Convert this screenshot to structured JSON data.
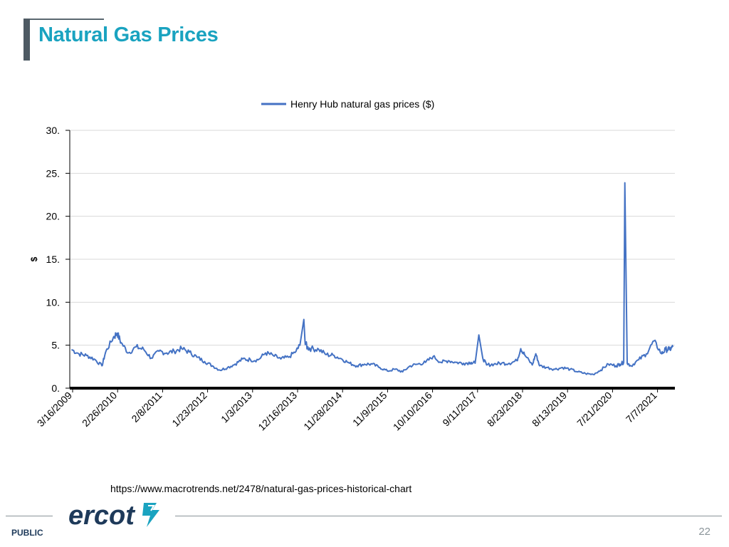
{
  "slide": {
    "title": "Natural Gas Prices",
    "source_url": "https://www.macrotrends.net/2478/natural-gas-prices-historical-chart",
    "classification": "PUBLIC",
    "page_number": "22",
    "logo_text": "ercot",
    "colors": {
      "title": "#1aa3c0",
      "logo": "#1e3a5a",
      "logo_accent": "#1aa3c0"
    }
  },
  "chart_data": {
    "type": "line",
    "title": "",
    "xlabel": "",
    "ylabel": "$",
    "ylim": [
      0,
      30
    ],
    "yticks": [
      "30.",
      "25.",
      "20.",
      "15.",
      "10.",
      "5.",
      "0."
    ],
    "ytick_values": [
      30,
      25,
      20,
      15,
      10,
      5,
      0
    ],
    "xtick_labels": [
      "3/16/2009",
      "2/26/2010",
      "2/8/2011",
      "1/23/2012",
      "1/3/2013",
      "12/16/2013",
      "11/28/2014",
      "11/9/2015",
      "10/10/2016",
      "9/11/2017",
      "8/23/2018",
      "8/13/2019",
      "7/21/2020",
      "7/7/2021"
    ],
    "grid": true,
    "legend": "top-center",
    "series": [
      {
        "name": "Henry Hub natural gas prices ($)",
        "color": "#4472c4",
        "x": [
          "2009-01",
          "2009-03",
          "2009-05",
          "2009-07",
          "2009-09",
          "2009-10",
          "2009-12",
          "2010-01",
          "2010-02",
          "2010-04",
          "2010-06",
          "2010-08",
          "2010-10",
          "2010-12",
          "2011-02",
          "2011-04",
          "2011-06",
          "2011-08",
          "2011-10",
          "2011-12",
          "2012-02",
          "2012-04",
          "2012-06",
          "2012-08",
          "2012-10",
          "2012-12",
          "2013-02",
          "2013-04",
          "2013-06",
          "2013-08",
          "2013-10",
          "2013-12",
          "2014-01",
          "2014-02",
          "2014-02",
          "2014-03",
          "2014-04",
          "2014-06",
          "2014-08",
          "2014-10",
          "2014-12",
          "2015-02",
          "2015-04",
          "2015-06",
          "2015-08",
          "2015-10",
          "2015-12",
          "2016-02",
          "2016-04",
          "2016-06",
          "2016-08",
          "2016-10",
          "2016-12",
          "2017-02",
          "2017-04",
          "2017-06",
          "2017-08",
          "2017-10",
          "2017-11",
          "2017-12",
          "2018-01",
          "2018-02",
          "2018-04",
          "2018-06",
          "2018-08",
          "2018-10",
          "2018-11",
          "2018-12",
          "2019-02",
          "2019-03",
          "2019-04",
          "2019-06",
          "2019-08",
          "2019-10",
          "2019-12",
          "2020-02",
          "2020-04",
          "2020-06",
          "2020-08",
          "2020-10",
          "2020-12",
          "2021-01",
          "2021-02",
          "2021-02",
          "2021-03",
          "2021-04",
          "2021-06",
          "2021-08",
          "2021-10",
          "2021-12",
          "2022-01",
          "2022-02",
          "2022-03"
        ],
        "values": [
          4.5,
          4.0,
          3.8,
          3.4,
          2.6,
          4.2,
          5.9,
          6.4,
          5.3,
          4.1,
          4.8,
          4.5,
          3.5,
          4.3,
          4.1,
          4.3,
          4.6,
          4.2,
          3.6,
          3.1,
          2.6,
          2.1,
          2.4,
          2.8,
          3.4,
          3.3,
          3.3,
          4.1,
          3.8,
          3.4,
          3.6,
          4.3,
          5.0,
          8.0,
          5.5,
          4.7,
          4.6,
          4.5,
          3.9,
          3.8,
          3.4,
          2.9,
          2.6,
          2.8,
          2.8,
          2.4,
          2.0,
          2.2,
          1.9,
          2.6,
          2.8,
          3.0,
          3.7,
          3.0,
          3.2,
          3.0,
          2.9,
          3.0,
          2.9,
          6.2,
          3.5,
          2.7,
          2.8,
          2.9,
          2.9,
          3.2,
          4.6,
          3.9,
          2.7,
          4.0,
          2.6,
          2.4,
          2.2,
          2.4,
          2.2,
          1.9,
          1.7,
          1.6,
          2.1,
          2.8,
          2.6,
          2.8,
          3.0,
          23.9,
          2.9,
          2.6,
          3.3,
          4.0,
          5.5,
          4.0,
          4.5,
          4.5,
          4.8
        ]
      }
    ]
  }
}
